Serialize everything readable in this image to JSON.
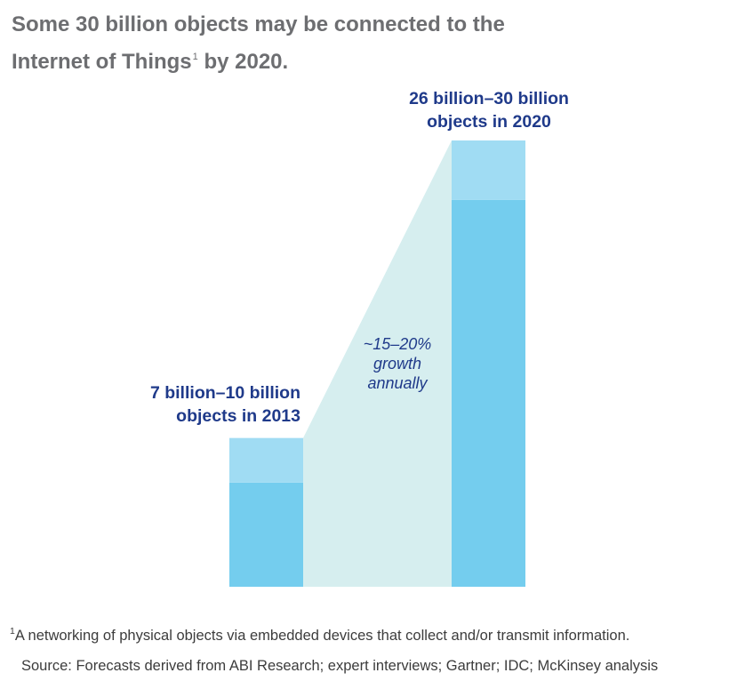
{
  "title": {
    "line1": "Some 30 billion objects may be connected to the",
    "line2_text": "Internet of Things",
    "line2_sup": "1",
    "line2_end": " by 2020."
  },
  "chart_data": {
    "type": "bar",
    "categories": [
      "2013",
      "2020"
    ],
    "ranges": [
      {
        "low": 7,
        "high": 10,
        "label_line1": "7 billion–10 billion",
        "label_line2": "objects in 2013"
      },
      {
        "low": 26,
        "high": 30,
        "label_line1": "26 billion–30 billion",
        "label_line2": "objects in 2020"
      }
    ],
    "units": "billion objects",
    "annotation": [
      "~15–20%",
      "growth",
      "annually"
    ],
    "ylim": [
      0,
      30
    ],
    "grid": false,
    "colors": {
      "range_low": "#74cdee",
      "range_high": "#a0dcf3",
      "growth_band": "#d6eeef",
      "label": "#1f3a8a",
      "annotation": "#1f3a8a"
    }
  },
  "footnote": {
    "sup": "1",
    "text": "A networking of physical objects via embedded devices that collect and/or transmit information."
  },
  "source": "Source: Forecasts derived from ABI Research; expert interviews; Gartner; IDC; McKinsey analysis"
}
